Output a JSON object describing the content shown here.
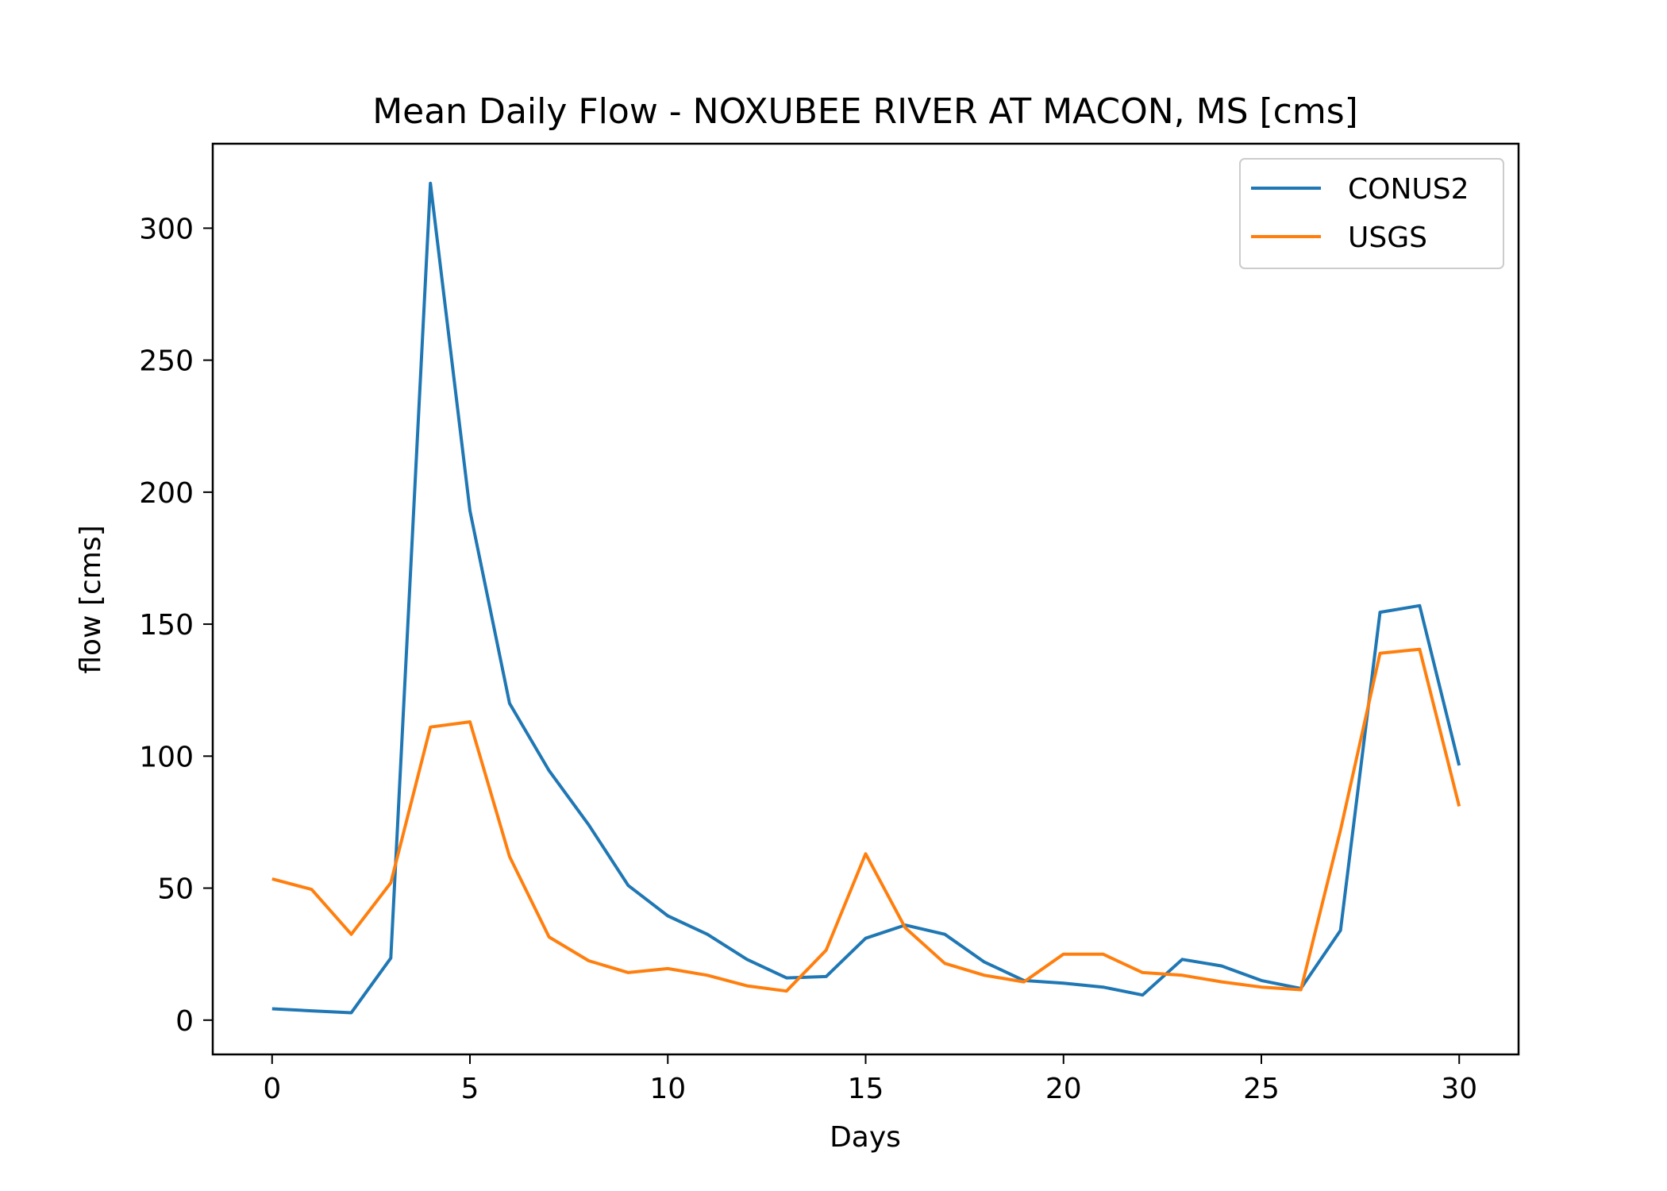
{
  "chart_data": {
    "type": "line",
    "title": "Mean Daily Flow - NOXUBEE RIVER AT MACON, MS [cms]",
    "xlabel": "Days",
    "ylabel": "flow [cms]",
    "xlim": [
      -1.5,
      31.5
    ],
    "ylim": [
      -13,
      332
    ],
    "xticks": [
      0,
      5,
      10,
      15,
      20,
      25,
      30
    ],
    "yticks": [
      0,
      50,
      100,
      150,
      200,
      250,
      300
    ],
    "grid": false,
    "legend_position": "top-right",
    "x": [
      0,
      1,
      2,
      3,
      4,
      5,
      6,
      7,
      8,
      9,
      10,
      11,
      12,
      13,
      14,
      15,
      16,
      17,
      18,
      19,
      20,
      21,
      22,
      23,
      24,
      25,
      26,
      27,
      28,
      29,
      30
    ],
    "series": [
      {
        "name": "CONUS2",
        "color": "#1f77b4",
        "values": [
          4.3,
          3.5,
          2.8,
          23.5,
          317,
          193,
          120,
          94.5,
          74,
          51,
          39.5,
          32.5,
          23,
          16,
          16.5,
          31,
          36,
          32.5,
          22,
          15,
          14,
          12.5,
          9.5,
          23,
          20.5,
          15,
          12,
          34,
          154.5,
          157,
          96.5
        ]
      },
      {
        "name": "USGS",
        "color": "#ff7f0e",
        "values": [
          53.5,
          49.5,
          32.5,
          52,
          111,
          113,
          62,
          31.5,
          22.5,
          18,
          19.5,
          17,
          13,
          11,
          26.5,
          63,
          35,
          21.5,
          17,
          14.5,
          25,
          25,
          18,
          17,
          14.5,
          12.5,
          11.5,
          72,
          139,
          140.5,
          81
        ]
      }
    ]
  }
}
